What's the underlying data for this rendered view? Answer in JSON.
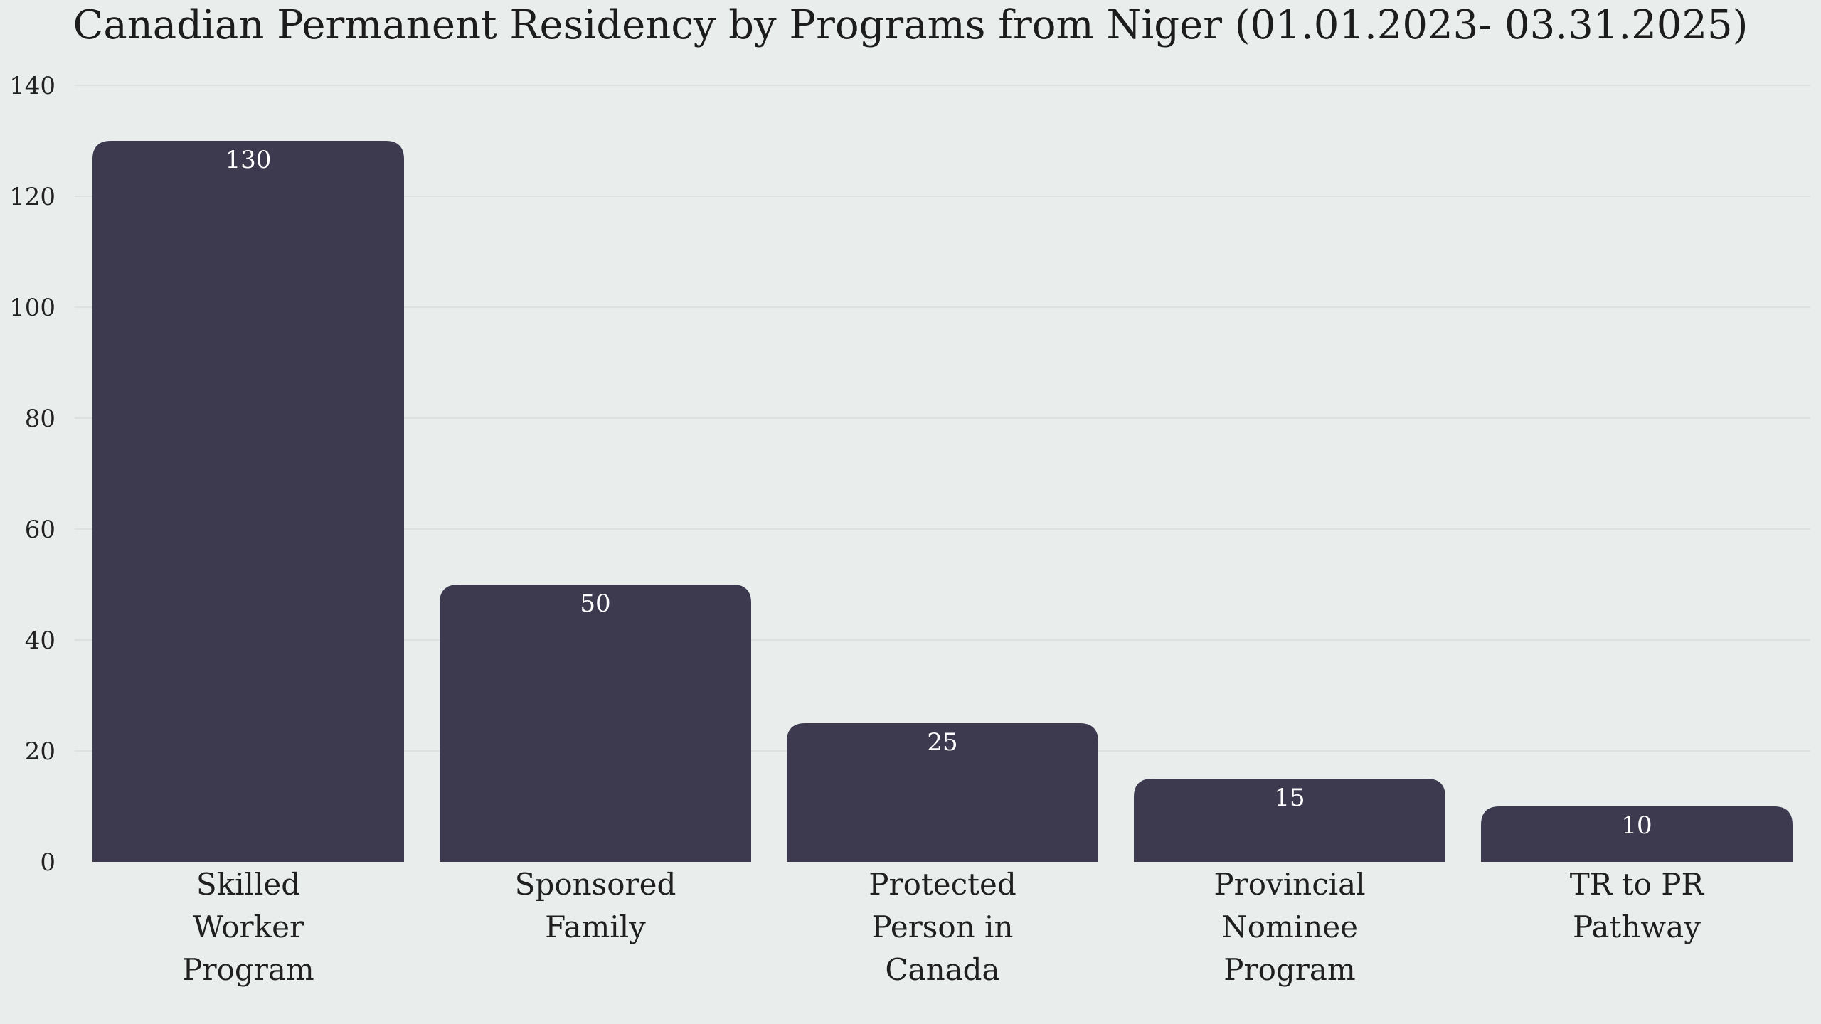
{
  "chart_data": {
    "type": "bar",
    "title": "Canadian Permanent Residency by Programs from Niger (01.01.2023- 03.31.2025)",
    "xlabel": "",
    "ylabel": "",
    "categories": [
      "Skilled Worker Program",
      "Sponsored Family",
      "Protected Person in Canada",
      "Provincial Nominee Program",
      "TR to PR Pathway"
    ],
    "category_lines": [
      [
        "Skilled",
        "Worker",
        "Program"
      ],
      [
        "Sponsored",
        "Family"
      ],
      [
        "Protected",
        "Person in",
        "Canada"
      ],
      [
        "Provincial",
        "Nominee",
        "Program"
      ],
      [
        "TR to PR",
        "Pathway"
      ]
    ],
    "values": [
      130,
      50,
      25,
      15,
      10
    ],
    "ylim": [
      0,
      140
    ],
    "yticks": [
      0,
      20,
      40,
      60,
      80,
      100,
      120,
      140
    ],
    "grid": true,
    "legend": "none",
    "colors": {
      "bar": "#3d3a50",
      "background": "#e9edec",
      "grid": "#d9dedd",
      "value_label": "#ffffff"
    }
  }
}
